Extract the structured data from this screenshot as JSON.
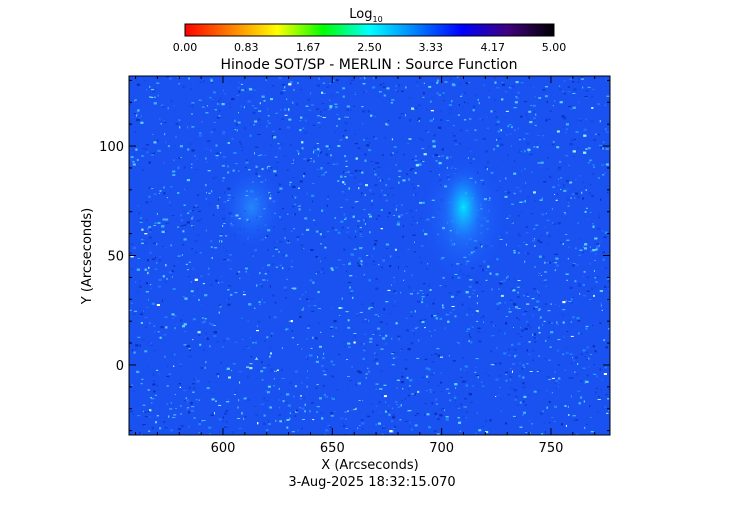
{
  "colorbar": {
    "label_main": "Log",
    "label_sub": "10",
    "ticks": [
      "0.00",
      "0.83",
      "1.67",
      "2.50",
      "3.33",
      "4.17",
      "5.00"
    ],
    "range": [
      0,
      5
    ],
    "palette": [
      "#ff0000",
      "#ff8000",
      "#ffff00",
      "#00ff00",
      "#00ffff",
      "#0080ff",
      "#0000ff",
      "#400080",
      "#000000"
    ]
  },
  "chart_data": {
    "type": "heatmap",
    "title": "Hinode SOT/SP - MERLIN : Source Function",
    "xlabel": "X (Arcseconds)",
    "ylabel": "Y (Arcseconds)",
    "xlim": [
      557,
      777
    ],
    "ylim": [
      -32,
      132
    ],
    "xticks": [
      600,
      650,
      700,
      750
    ],
    "yticks": [
      0,
      50,
      100
    ],
    "value_range": [
      0,
      5
    ],
    "dominant_value_approx": 4.0,
    "bright_regions": [
      {
        "x": 710,
        "y": 72,
        "value_approx": 3.2
      },
      {
        "x": 613,
        "y": 72,
        "value_approx": 3.6
      }
    ],
    "grid": false,
    "timestamp": "3-Aug-2025 18:32:15.070"
  }
}
